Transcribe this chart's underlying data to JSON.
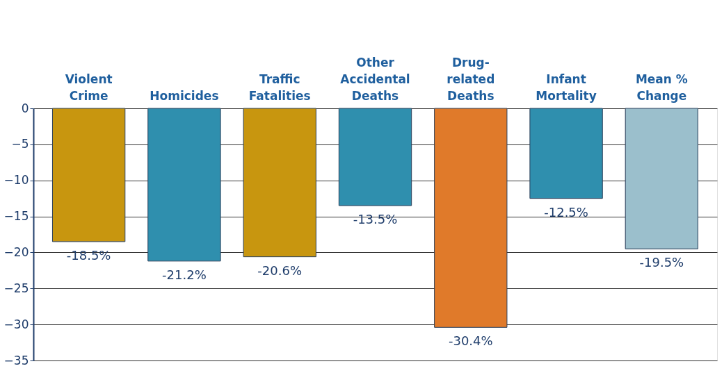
{
  "chart_data": {
    "type": "bar",
    "categories": [
      "Violent\nCrime",
      "Homicides",
      "Traffic\nFatalities",
      "Other\nAccidental\nDeaths",
      "Drug-\nrelated\nDeaths",
      "Infant\nMortality",
      "Mean %\nChange"
    ],
    "values": [
      -18.5,
      -21.2,
      -20.6,
      -13.5,
      -30.4,
      -12.5,
      -19.5
    ],
    "colors": [
      "#c8960f",
      "#2f8fae",
      "#c8960f",
      "#2f8fae",
      "#e07a2a",
      "#2f8fae",
      "#9bbfcc"
    ],
    "value_labels": [
      "-18.5%",
      "-21.2%",
      "-20.6%",
      "-13.5%",
      "-30.4%",
      "-12.5%",
      "-19.5%"
    ],
    "ylim": [
      -35,
      0
    ],
    "yticks": [
      0,
      -5,
      -10,
      -15,
      -20,
      -25,
      -30,
      -35
    ],
    "grid": "y"
  }
}
